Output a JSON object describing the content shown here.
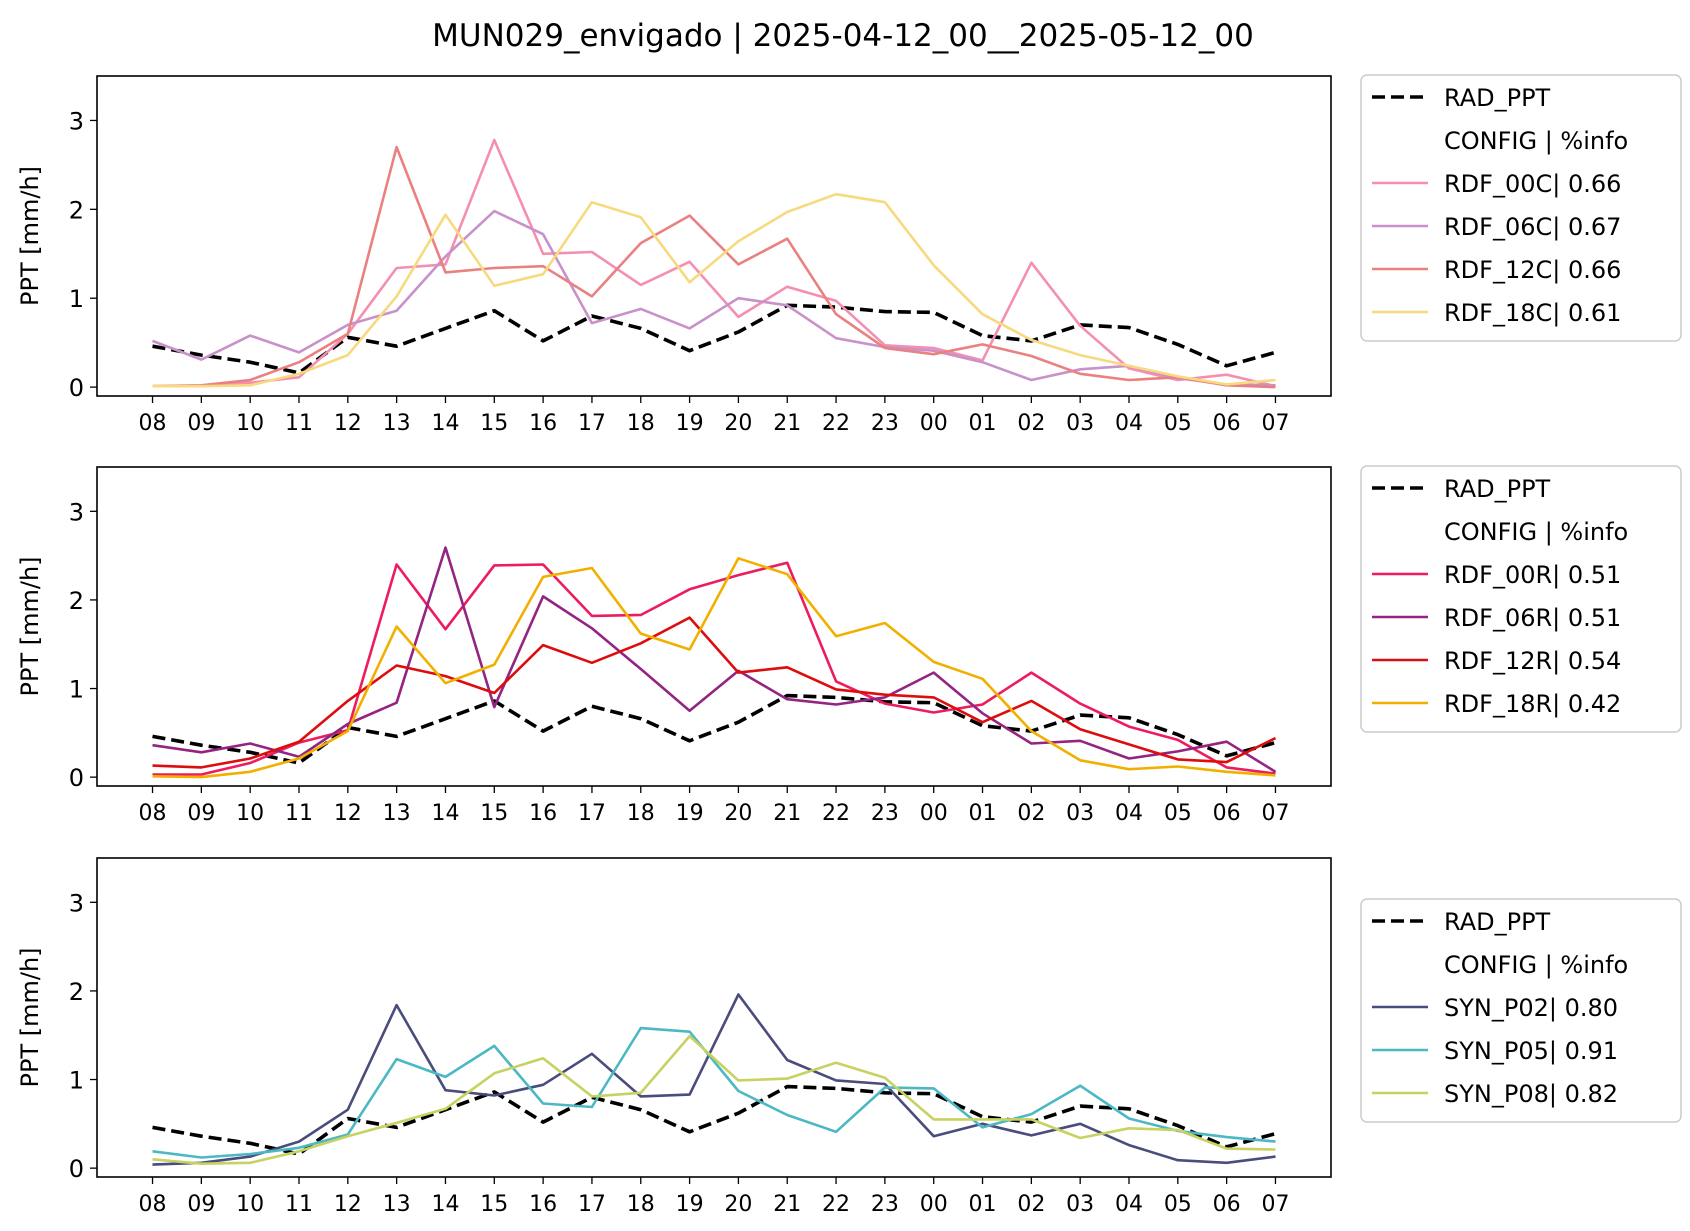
{
  "figure": {
    "title": "MUN029_envigado | 2025-04-12_00__2025-05-12_00"
  },
  "chart_data": [
    {
      "type": "line",
      "x": [
        "08",
        "09",
        "10",
        "11",
        "12",
        "13",
        "14",
        "15",
        "16",
        "17",
        "18",
        "19",
        "20",
        "21",
        "22",
        "23",
        "00",
        "01",
        "02",
        "03",
        "04",
        "05",
        "06",
        "07"
      ],
      "ylabel": "PPT [mm/h]",
      "ylim": [
        -0.1,
        3.5
      ],
      "yticks": [
        0,
        1,
        2,
        3
      ],
      "legend_header": "CONFIG  | %info",
      "legend_position": "outside-right",
      "series": [
        {
          "name": "RAD_PPT",
          "color": "#000000",
          "dashed": true,
          "values": [
            0.46,
            0.36,
            0.28,
            0.16,
            0.56,
            0.46,
            0.66,
            0.86,
            0.52,
            0.8,
            0.66,
            0.41,
            0.62,
            0.92,
            0.9,
            0.85,
            0.84,
            0.58,
            0.52,
            0.7,
            0.67,
            0.48,
            0.24,
            0.39
          ]
        },
        {
          "name": "RDF_00C| 0.66",
          "color": "#f48fb1",
          "values": [
            0.01,
            0.01,
            0.05,
            0.11,
            0.6,
            1.34,
            1.38,
            2.78,
            1.5,
            1.52,
            1.15,
            1.41,
            0.79,
            1.13,
            0.97,
            0.47,
            0.44,
            0.3,
            1.4,
            0.69,
            0.21,
            0.08,
            0.14,
            0.01
          ]
        },
        {
          "name": "RDF_06C| 0.67",
          "color": "#c991c9",
          "values": [
            0.52,
            0.31,
            0.58,
            0.39,
            0.7,
            0.86,
            1.47,
            1.98,
            1.72,
            0.72,
            0.88,
            0.66,
            1.0,
            0.92,
            0.55,
            0.45,
            0.41,
            0.28,
            0.08,
            0.2,
            0.24,
            0.1,
            0.03,
            0.02
          ]
        },
        {
          "name": "RDF_12C| 0.66",
          "color": "#ea8080",
          "values": [
            0.01,
            0.02,
            0.08,
            0.28,
            0.6,
            2.7,
            1.29,
            1.34,
            1.36,
            1.02,
            1.62,
            1.93,
            1.38,
            1.67,
            0.82,
            0.44,
            0.37,
            0.48,
            0.35,
            0.15,
            0.08,
            0.11,
            0.02,
            0.0
          ]
        },
        {
          "name": "RDF_18C| 0.61",
          "color": "#f7d97e",
          "values": [
            0.01,
            0.01,
            0.02,
            0.15,
            0.36,
            1.02,
            1.94,
            1.14,
            1.27,
            2.08,
            1.91,
            1.18,
            1.64,
            1.97,
            2.17,
            2.08,
            1.37,
            0.82,
            0.53,
            0.36,
            0.24,
            0.12,
            0.03,
            0.08
          ]
        }
      ]
    },
    {
      "type": "line",
      "x": [
        "08",
        "09",
        "10",
        "11",
        "12",
        "13",
        "14",
        "15",
        "16",
        "17",
        "18",
        "19",
        "20",
        "21",
        "22",
        "23",
        "00",
        "01",
        "02",
        "03",
        "04",
        "05",
        "06",
        "07"
      ],
      "ylabel": "PPT [mm/h]",
      "ylim": [
        -0.1,
        3.5
      ],
      "yticks": [
        0,
        1,
        2,
        3
      ],
      "legend_header": "CONFIG  | %info",
      "legend_position": "outside-right",
      "series": [
        {
          "name": "RAD_PPT",
          "color": "#000000",
          "dashed": true,
          "values": [
            0.46,
            0.36,
            0.28,
            0.16,
            0.56,
            0.46,
            0.66,
            0.86,
            0.52,
            0.8,
            0.66,
            0.41,
            0.62,
            0.92,
            0.9,
            0.85,
            0.84,
            0.58,
            0.52,
            0.7,
            0.67,
            0.48,
            0.24,
            0.39
          ]
        },
        {
          "name": "RDF_00R| 0.51",
          "color": "#ed1c5f",
          "values": [
            0.03,
            0.03,
            0.16,
            0.39,
            0.53,
            2.4,
            1.67,
            2.39,
            2.4,
            1.82,
            1.83,
            2.12,
            2.28,
            2.42,
            1.08,
            0.83,
            0.73,
            0.82,
            1.18,
            0.83,
            0.57,
            0.42,
            0.11,
            0.04
          ]
        },
        {
          "name": "RDF_06R| 0.51",
          "color": "#942481",
          "values": [
            0.36,
            0.28,
            0.38,
            0.23,
            0.6,
            0.84,
            2.59,
            0.79,
            2.04,
            1.68,
            1.22,
            0.75,
            1.2,
            0.88,
            0.82,
            0.9,
            1.18,
            0.72,
            0.38,
            0.41,
            0.21,
            0.29,
            0.4,
            0.06
          ]
        },
        {
          "name": "RDF_12R| 0.54",
          "color": "#dd0d0d",
          "values": [
            0.13,
            0.11,
            0.21,
            0.4,
            0.86,
            1.26,
            1.14,
            0.95,
            1.49,
            1.29,
            1.51,
            1.8,
            1.18,
            1.24,
            0.99,
            0.93,
            0.9,
            0.62,
            0.86,
            0.54,
            0.37,
            0.2,
            0.17,
            0.44
          ]
        },
        {
          "name": "RDF_18R| 0.42",
          "color": "#f1b000",
          "values": [
            0.01,
            0.0,
            0.06,
            0.21,
            0.52,
            1.7,
            1.06,
            1.27,
            2.26,
            2.36,
            1.62,
            1.44,
            2.47,
            2.29,
            1.59,
            1.74,
            1.3,
            1.11,
            0.52,
            0.19,
            0.09,
            0.12,
            0.06,
            0.02
          ]
        }
      ]
    },
    {
      "type": "line",
      "x": [
        "08",
        "09",
        "10",
        "11",
        "12",
        "13",
        "14",
        "15",
        "16",
        "17",
        "18",
        "19",
        "20",
        "21",
        "22",
        "23",
        "00",
        "01",
        "02",
        "03",
        "04",
        "05",
        "06",
        "07"
      ],
      "ylabel": "PPT [mm/h]",
      "ylim": [
        -0.1,
        3.5
      ],
      "yticks": [
        0,
        1,
        2,
        3
      ],
      "legend_header": "CONFIG  | %info",
      "legend_position": "outside-right",
      "series": [
        {
          "name": "RAD_PPT",
          "color": "#000000",
          "dashed": true,
          "values": [
            0.46,
            0.36,
            0.28,
            0.16,
            0.56,
            0.46,
            0.66,
            0.86,
            0.52,
            0.8,
            0.66,
            0.41,
            0.62,
            0.92,
            0.9,
            0.85,
            0.84,
            0.58,
            0.52,
            0.7,
            0.67,
            0.48,
            0.24,
            0.39
          ]
        },
        {
          "name": "SYN_P02| 0.80",
          "color": "#4a4c7c",
          "values": [
            0.04,
            0.06,
            0.13,
            0.3,
            0.66,
            1.84,
            0.88,
            0.82,
            0.94,
            1.29,
            0.81,
            0.83,
            1.96,
            1.22,
            0.99,
            0.95,
            0.36,
            0.5,
            0.37,
            0.5,
            0.26,
            0.09,
            0.06,
            0.13
          ]
        },
        {
          "name": "SYN_P05| 0.91",
          "color": "#4cb8c4",
          "values": [
            0.19,
            0.12,
            0.16,
            0.23,
            0.38,
            1.23,
            1.03,
            1.38,
            0.73,
            0.69,
            1.58,
            1.54,
            0.87,
            0.6,
            0.41,
            0.91,
            0.9,
            0.46,
            0.61,
            0.93,
            0.56,
            0.42,
            0.35,
            0.3
          ]
        },
        {
          "name": "SYN_P08| 0.82",
          "color": "#c7d260",
          "values": [
            0.1,
            0.05,
            0.06,
            0.19,
            0.36,
            0.51,
            0.67,
            1.07,
            1.24,
            0.81,
            0.85,
            1.49,
            0.99,
            1.01,
            1.19,
            1.02,
            0.55,
            0.55,
            0.55,
            0.34,
            0.45,
            0.43,
            0.22,
            0.21
          ]
        }
      ]
    }
  ]
}
